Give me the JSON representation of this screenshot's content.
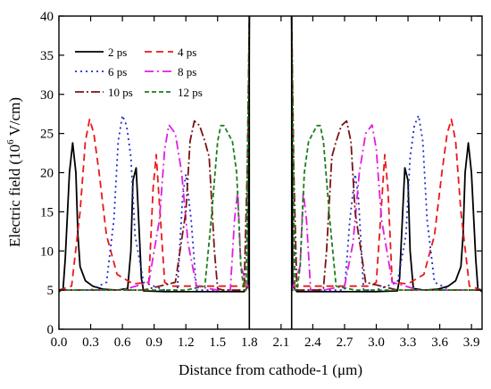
{
  "chart_data": {
    "type": "line",
    "title": "",
    "xlabel": "Distance from cathode-1 (",
    "xlabel_unit": "μ",
    "xlabel_end": "m)",
    "ylabel": "Electric field (10",
    "ylabel_exp": "6",
    "ylabel_end": " V/cm)",
    "xlim": [
      0.0,
      4.0
    ],
    "ylim": [
      0,
      40
    ],
    "xticks": [
      0.0,
      0.3,
      0.6,
      0.9,
      1.2,
      1.5,
      1.8,
      2.1,
      2.4,
      2.7,
      3.0,
      3.3,
      3.6,
      3.9
    ],
    "xtick_labels": [
      "0.0",
      "0.3",
      "0.6",
      "0.9",
      "1.2",
      "1.5",
      "1.8",
      "2.1",
      "2.4",
      "2.7",
      "3.0",
      "3.3",
      "3.6",
      "3.9"
    ],
    "yticks": [
      0,
      5,
      10,
      15,
      20,
      25,
      30,
      35,
      40
    ],
    "ytick_labels": [
      "0",
      "5",
      "10",
      "15",
      "20",
      "25",
      "30",
      "35",
      "40"
    ],
    "grid": false,
    "legend_position": "top-left",
    "series": [
      {
        "name": "2 ps",
        "color": "#000000",
        "dash": "solid",
        "x": [
          0.0,
          0.04,
          0.06,
          0.1,
          0.13,
          0.16,
          0.18,
          0.2,
          0.25,
          0.32,
          0.42,
          0.55,
          0.65,
          0.68,
          0.7,
          0.73,
          0.75,
          0.78,
          0.8,
          1.0,
          1.3,
          1.6,
          1.75,
          1.79,
          1.8
        ],
        "y": [
          4.8,
          5.2,
          9.0,
          20.0,
          23.8,
          20.0,
          12.0,
          8.0,
          6.2,
          5.5,
          5.1,
          5.0,
          5.2,
          10.0,
          19.0,
          20.6,
          15.0,
          6.5,
          4.9,
          4.8,
          4.8,
          4.8,
          4.8,
          5.5,
          40.0
        ]
      },
      {
        "name": "4 ps",
        "color": "#e8191b",
        "dash": "8,5",
        "x": [
          0.0,
          0.12,
          0.2,
          0.25,
          0.29,
          0.33,
          0.38,
          0.45,
          0.55,
          0.7,
          0.85,
          0.89,
          0.92,
          0.95,
          1.0,
          1.05,
          1.3,
          1.6,
          1.8
        ],
        "y": [
          5.0,
          5.5,
          15.0,
          24.0,
          26.8,
          25.0,
          20.0,
          12.0,
          7.0,
          5.8,
          6.0,
          18.0,
          22.3,
          16.0,
          6.0,
          5.5,
          5.5,
          5.5,
          5.5
        ]
      },
      {
        "name": "6 ps",
        "color": "#1c2cc9",
        "dash": "2,4",
        "x": [
          0.0,
          0.3,
          0.45,
          0.52,
          0.56,
          0.6,
          0.64,
          0.68,
          0.72,
          0.8,
          1.0,
          1.12,
          1.17,
          1.2,
          1.25,
          1.3,
          1.6,
          1.8
        ],
        "y": [
          5.0,
          5.0,
          6.0,
          14.0,
          24.0,
          27.3,
          26.0,
          22.0,
          12.0,
          6.0,
          5.0,
          5.0,
          17.0,
          19.8,
          14.0,
          5.0,
          5.0,
          5.0
        ]
      },
      {
        "name": "8 ps",
        "color": "#e21ce2",
        "dash": "10,4,2,4",
        "x": [
          0.0,
          0.6,
          0.85,
          0.95,
          1.0,
          1.04,
          1.1,
          1.16,
          1.22,
          1.3,
          1.5,
          1.62,
          1.66,
          1.69,
          1.72,
          1.8
        ],
        "y": [
          5.0,
          5.0,
          6.0,
          14.0,
          23.0,
          26.1,
          25.0,
          20.0,
          11.0,
          5.5,
          5.0,
          5.0,
          14.0,
          17.6,
          8.0,
          5.0
        ]
      },
      {
        "name": "10 ps",
        "color": "#7a1414",
        "dash": "10,3,2,3",
        "x": [
          0.0,
          0.8,
          1.1,
          1.2,
          1.24,
          1.28,
          1.33,
          1.38,
          1.42,
          1.47,
          1.5,
          1.55,
          1.75,
          1.78,
          1.8
        ],
        "y": [
          5.0,
          5.0,
          6.0,
          15.0,
          24.0,
          26.6,
          26.0,
          24.0,
          22.0,
          10.0,
          5.2,
          5.0,
          5.0,
          20.0,
          40.0
        ]
      },
      {
        "name": "12 ps",
        "color": "#1c7f1c",
        "dash": "5,3",
        "x": [
          0.0,
          1.2,
          1.38,
          1.44,
          1.5,
          1.53,
          1.56,
          1.6,
          1.64,
          1.68,
          1.72,
          1.75,
          1.77,
          1.8
        ],
        "y": [
          5.0,
          5.0,
          5.5,
          14.0,
          24.0,
          26.0,
          26.0,
          25.0,
          24.0,
          20.0,
          8.0,
          5.0,
          5.0,
          40.0
        ]
      }
    ]
  },
  "legend": [
    {
      "label": "2 ps",
      "color": "#000000",
      "dash": "solid"
    },
    {
      "label": "4 ps",
      "color": "#e8191b",
      "dash": "8,5"
    },
    {
      "label": "6 ps",
      "color": "#1c2cc9",
      "dash": "2,4"
    },
    {
      "label": "8 ps",
      "color": "#e21ce2",
      "dash": "10,4,2,4"
    },
    {
      "label": "10 ps",
      "color": "#7a1414",
      "dash": "10,3,2,3"
    },
    {
      "label": "12 ps",
      "color": "#1c7f1c",
      "dash": "5,3"
    }
  ]
}
